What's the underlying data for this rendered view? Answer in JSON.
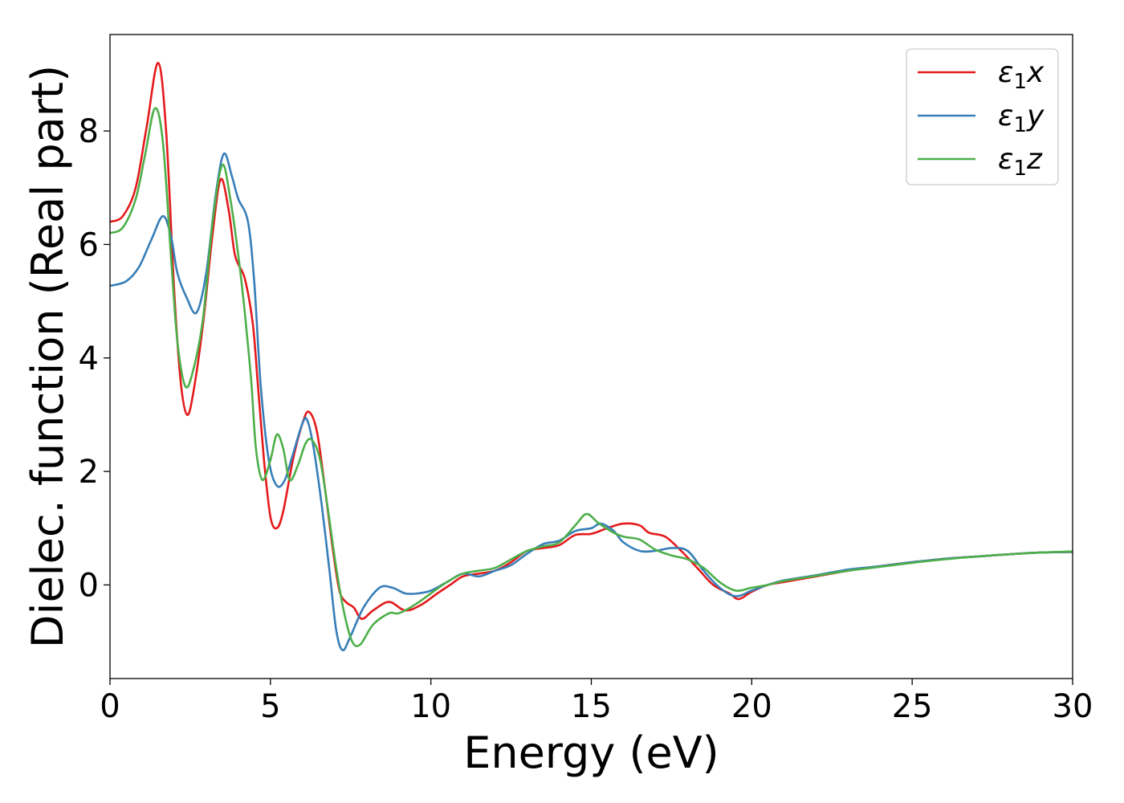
{
  "chart_data": {
    "type": "line",
    "title": "",
    "xlabel": "Energy (eV)",
    "ylabel": "Dielec. function (Real part)",
    "xlim": [
      0,
      30
    ],
    "ylim": [
      -1.65,
      9.7
    ],
    "xticks": [
      0,
      5,
      10,
      15,
      20,
      25,
      30
    ],
    "yticks": [
      0,
      2,
      4,
      6,
      8
    ],
    "grid": false,
    "legend_position": "top-right",
    "series": [
      {
        "name": "ε1x",
        "label_main": "ε",
        "label_sub": "1",
        "label_tail": "x",
        "color": "#e41a1c",
        "points": [
          [
            0,
            6.4
          ],
          [
            0.4,
            6.5
          ],
          [
            0.8,
            7.0
          ],
          [
            1.15,
            8.1
          ],
          [
            1.5,
            9.2
          ],
          [
            1.75,
            8.0
          ],
          [
            2.0,
            5.2
          ],
          [
            2.2,
            3.6
          ],
          [
            2.4,
            3.0
          ],
          [
            2.6,
            3.4
          ],
          [
            2.9,
            4.6
          ],
          [
            3.2,
            6.2
          ],
          [
            3.45,
            7.15
          ],
          [
            3.7,
            6.6
          ],
          [
            3.9,
            5.8
          ],
          [
            4.2,
            5.4
          ],
          [
            4.45,
            4.6
          ],
          [
            4.6,
            3.6
          ],
          [
            4.8,
            2.2
          ],
          [
            5.0,
            1.2
          ],
          [
            5.2,
            1.0
          ],
          [
            5.4,
            1.3
          ],
          [
            5.7,
            2.2
          ],
          [
            6.0,
            2.85
          ],
          [
            6.2,
            3.05
          ],
          [
            6.45,
            2.7
          ],
          [
            6.7,
            1.7
          ],
          [
            6.95,
            0.6
          ],
          [
            7.15,
            -0.1
          ],
          [
            7.35,
            -0.3
          ],
          [
            7.6,
            -0.4
          ],
          [
            7.85,
            -0.6
          ],
          [
            8.2,
            -0.45
          ],
          [
            8.7,
            -0.3
          ],
          [
            9.2,
            -0.45
          ],
          [
            9.7,
            -0.35
          ],
          [
            10.2,
            -0.15
          ],
          [
            10.6,
            0.0
          ],
          [
            11.0,
            0.15
          ],
          [
            11.5,
            0.2
          ],
          [
            12.0,
            0.25
          ],
          [
            12.5,
            0.4
          ],
          [
            13.0,
            0.6
          ],
          [
            13.5,
            0.65
          ],
          [
            14.0,
            0.7
          ],
          [
            14.5,
            0.88
          ],
          [
            15.0,
            0.9
          ],
          [
            15.5,
            1.0
          ],
          [
            16.0,
            1.08
          ],
          [
            16.5,
            1.05
          ],
          [
            16.8,
            0.92
          ],
          [
            17.3,
            0.85
          ],
          [
            17.8,
            0.6
          ],
          [
            18.3,
            0.3
          ],
          [
            18.8,
            0.0
          ],
          [
            19.3,
            -0.15
          ],
          [
            19.6,
            -0.25
          ],
          [
            20.0,
            -0.12
          ],
          [
            20.5,
            0.0
          ],
          [
            21.0,
            0.05
          ],
          [
            22.0,
            0.15
          ],
          [
            23.0,
            0.25
          ],
          [
            24.0,
            0.33
          ],
          [
            25.0,
            0.4
          ],
          [
            26.0,
            0.46
          ],
          [
            27.0,
            0.5
          ],
          [
            28.0,
            0.54
          ],
          [
            29.0,
            0.57
          ],
          [
            30.0,
            0.58
          ]
        ]
      },
      {
        "name": "ε1y",
        "label_main": "ε",
        "label_sub": "1",
        "label_tail": "y",
        "color": "#377eb8",
        "points": [
          [
            0,
            5.27
          ],
          [
            0.5,
            5.35
          ],
          [
            0.9,
            5.6
          ],
          [
            1.3,
            6.1
          ],
          [
            1.65,
            6.5
          ],
          [
            1.9,
            6.15
          ],
          [
            2.1,
            5.5
          ],
          [
            2.4,
            5.05
          ],
          [
            2.7,
            4.8
          ],
          [
            3.0,
            5.5
          ],
          [
            3.3,
            6.9
          ],
          [
            3.55,
            7.6
          ],
          [
            3.8,
            7.2
          ],
          [
            4.0,
            6.8
          ],
          [
            4.3,
            6.4
          ],
          [
            4.5,
            5.3
          ],
          [
            4.7,
            3.5
          ],
          [
            4.95,
            2.2
          ],
          [
            5.2,
            1.75
          ],
          [
            5.45,
            1.85
          ],
          [
            5.7,
            2.3
          ],
          [
            6.0,
            2.85
          ],
          [
            6.15,
            2.9
          ],
          [
            6.35,
            2.4
          ],
          [
            6.6,
            1.4
          ],
          [
            6.85,
            0.2
          ],
          [
            7.05,
            -0.8
          ],
          [
            7.25,
            -1.15
          ],
          [
            7.5,
            -0.9
          ],
          [
            7.9,
            -0.4
          ],
          [
            8.4,
            -0.05
          ],
          [
            8.8,
            -0.05
          ],
          [
            9.2,
            -0.15
          ],
          [
            9.6,
            -0.15
          ],
          [
            10.0,
            -0.1
          ],
          [
            10.5,
            0.05
          ],
          [
            11.0,
            0.2
          ],
          [
            11.5,
            0.15
          ],
          [
            12.0,
            0.25
          ],
          [
            12.5,
            0.35
          ],
          [
            13.0,
            0.55
          ],
          [
            13.5,
            0.72
          ],
          [
            14.0,
            0.78
          ],
          [
            14.5,
            0.95
          ],
          [
            15.0,
            1.0
          ],
          [
            15.3,
            1.08
          ],
          [
            15.7,
            0.95
          ],
          [
            16.0,
            0.75
          ],
          [
            16.5,
            0.6
          ],
          [
            17.0,
            0.6
          ],
          [
            17.5,
            0.65
          ],
          [
            18.0,
            0.6
          ],
          [
            18.5,
            0.25
          ],
          [
            19.0,
            -0.05
          ],
          [
            19.5,
            -0.2
          ],
          [
            20.0,
            -0.1
          ],
          [
            20.5,
            0.0
          ],
          [
            21.0,
            0.08
          ],
          [
            22.0,
            0.17
          ],
          [
            23.0,
            0.27
          ],
          [
            24.0,
            0.33
          ],
          [
            25.0,
            0.4
          ],
          [
            26.0,
            0.46
          ],
          [
            27.0,
            0.5
          ],
          [
            28.0,
            0.54
          ],
          [
            29.0,
            0.57
          ],
          [
            30.0,
            0.58
          ]
        ]
      },
      {
        "name": "ε1z",
        "label_main": "ε",
        "label_sub": "1",
        "label_tail": "z",
        "color": "#4daf4a",
        "points": [
          [
            0,
            6.2
          ],
          [
            0.4,
            6.3
          ],
          [
            0.8,
            6.8
          ],
          [
            1.1,
            7.6
          ],
          [
            1.4,
            8.4
          ],
          [
            1.65,
            7.8
          ],
          [
            1.9,
            5.8
          ],
          [
            2.1,
            4.3
          ],
          [
            2.35,
            3.5
          ],
          [
            2.6,
            3.8
          ],
          [
            2.9,
            4.7
          ],
          [
            3.2,
            6.4
          ],
          [
            3.5,
            7.4
          ],
          [
            3.75,
            6.8
          ],
          [
            4.0,
            5.8
          ],
          [
            4.2,
            4.8
          ],
          [
            4.4,
            3.6
          ],
          [
            4.55,
            2.4
          ],
          [
            4.75,
            1.85
          ],
          [
            5.0,
            2.2
          ],
          [
            5.2,
            2.65
          ],
          [
            5.4,
            2.4
          ],
          [
            5.6,
            1.85
          ],
          [
            5.85,
            2.1
          ],
          [
            6.1,
            2.5
          ],
          [
            6.3,
            2.55
          ],
          [
            6.55,
            2.2
          ],
          [
            6.8,
            1.3
          ],
          [
            7.05,
            0.3
          ],
          [
            7.3,
            -0.5
          ],
          [
            7.55,
            -1.0
          ],
          [
            7.8,
            -1.05
          ],
          [
            8.2,
            -0.7
          ],
          [
            8.7,
            -0.5
          ],
          [
            9.0,
            -0.5
          ],
          [
            9.5,
            -0.35
          ],
          [
            10.0,
            -0.15
          ],
          [
            10.5,
            0.05
          ],
          [
            11.0,
            0.2
          ],
          [
            11.5,
            0.25
          ],
          [
            12.0,
            0.3
          ],
          [
            12.5,
            0.45
          ],
          [
            13.0,
            0.6
          ],
          [
            13.5,
            0.68
          ],
          [
            14.0,
            0.75
          ],
          [
            14.5,
            1.05
          ],
          [
            14.85,
            1.25
          ],
          [
            15.2,
            1.1
          ],
          [
            15.6,
            0.95
          ],
          [
            16.0,
            0.85
          ],
          [
            16.5,
            0.8
          ],
          [
            17.0,
            0.62
          ],
          [
            17.5,
            0.52
          ],
          [
            18.0,
            0.45
          ],
          [
            18.5,
            0.3
          ],
          [
            19.0,
            0.05
          ],
          [
            19.5,
            -0.1
          ],
          [
            20.0,
            -0.05
          ],
          [
            20.5,
            0.0
          ],
          [
            21.0,
            0.07
          ],
          [
            22.0,
            0.16
          ],
          [
            23.0,
            0.25
          ],
          [
            24.0,
            0.32
          ],
          [
            25.0,
            0.39
          ],
          [
            26.0,
            0.45
          ],
          [
            27.0,
            0.5
          ],
          [
            28.0,
            0.54
          ],
          [
            29.0,
            0.57
          ],
          [
            30.0,
            0.59
          ]
        ]
      }
    ]
  }
}
